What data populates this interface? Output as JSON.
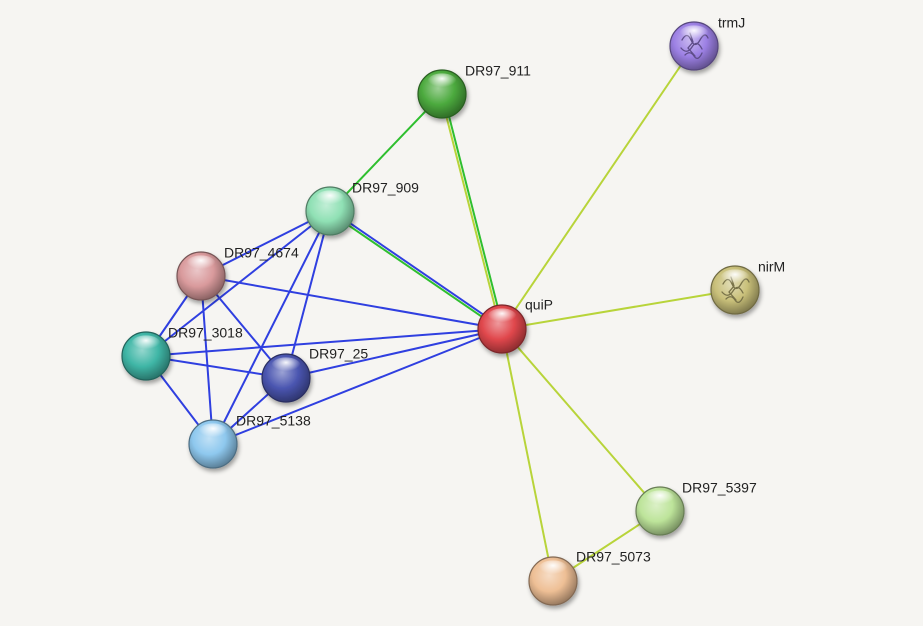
{
  "network": {
    "nodes": [
      {
        "id": "quiP",
        "label": "quiP",
        "color": "#e0474c"
      },
      {
        "id": "DR97_911",
        "label": "DR97_911",
        "color": "#4caa3e"
      },
      {
        "id": "DR97_909",
        "label": "DR97_909",
        "color": "#8fe0b4"
      },
      {
        "id": "DR97_4674",
        "label": "DR97_4674",
        "color": "#d99a9c"
      },
      {
        "id": "DR97_3018",
        "label": "DR97_3018",
        "color": "#3fb6a6"
      },
      {
        "id": "DR97_25",
        "label": "DR97_25",
        "color": "#4a55b0"
      },
      {
        "id": "DR97_5138",
        "label": "DR97_5138",
        "color": "#8ec8ee"
      },
      {
        "id": "trmJ",
        "label": "trmJ",
        "color": "#9c80e4",
        "structure": true
      },
      {
        "id": "nirM",
        "label": "nirM",
        "color": "#c9c07a",
        "structure": true
      },
      {
        "id": "DR97_5397",
        "label": "DR97_5397",
        "color": "#bde49a"
      },
      {
        "id": "DR97_5073",
        "label": "DR97_5073",
        "color": "#eebf95"
      }
    ],
    "edges": [
      {
        "source": "DR97_4674",
        "target": "DR97_909",
        "colors": [
          "#2f3fe0"
        ]
      },
      {
        "source": "DR97_4674",
        "target": "DR97_3018",
        "colors": [
          "#2f3fe0"
        ]
      },
      {
        "source": "DR97_4674",
        "target": "DR97_25",
        "colors": [
          "#2f3fe0"
        ]
      },
      {
        "source": "DR97_4674",
        "target": "DR97_5138",
        "colors": [
          "#2f3fe0"
        ]
      },
      {
        "source": "DR97_4674",
        "target": "quiP",
        "colors": [
          "#2f3fe0"
        ]
      },
      {
        "source": "DR97_3018",
        "target": "DR97_909",
        "colors": [
          "#2f3fe0"
        ]
      },
      {
        "source": "DR97_3018",
        "target": "DR97_25",
        "colors": [
          "#2f3fe0"
        ]
      },
      {
        "source": "DR97_3018",
        "target": "DR97_5138",
        "colors": [
          "#2f3fe0"
        ]
      },
      {
        "source": "DR97_3018",
        "target": "quiP",
        "colors": [
          "#2f3fe0"
        ]
      },
      {
        "source": "DR97_909",
        "target": "DR97_25",
        "colors": [
          "#2f3fe0"
        ]
      },
      {
        "source": "DR97_909",
        "target": "DR97_5138",
        "colors": [
          "#2f3fe0"
        ]
      },
      {
        "source": "DR97_909",
        "target": "quiP",
        "colors": [
          "#2f3fe0",
          "#2fbf2f"
        ]
      },
      {
        "source": "DR97_909",
        "target": "DR97_911",
        "colors": [
          "#2fbf2f"
        ]
      },
      {
        "source": "DR97_911",
        "target": "quiP",
        "colors": [
          "#2fbf2f",
          "#b8d43a"
        ]
      },
      {
        "source": "DR97_25",
        "target": "quiP",
        "colors": [
          "#2f3fe0"
        ]
      },
      {
        "source": "DR97_25",
        "target": "DR97_5138",
        "colors": [
          "#2f3fe0"
        ]
      },
      {
        "source": "DR97_5138",
        "target": "quiP",
        "colors": [
          "#2f3fe0"
        ]
      },
      {
        "source": "trmJ",
        "target": "quiP",
        "colors": [
          "#b8d43a"
        ]
      },
      {
        "source": "nirM",
        "target": "quiP",
        "colors": [
          "#b8d43a"
        ]
      },
      {
        "source": "DR97_5397",
        "target": "quiP",
        "colors": [
          "#b8d43a"
        ]
      },
      {
        "source": "DR97_5073",
        "target": "quiP",
        "colors": [
          "#b8d43a"
        ]
      },
      {
        "source": "DR97_5073",
        "target": "DR97_5397",
        "colors": [
          "#b8d43a"
        ]
      }
    ]
  }
}
